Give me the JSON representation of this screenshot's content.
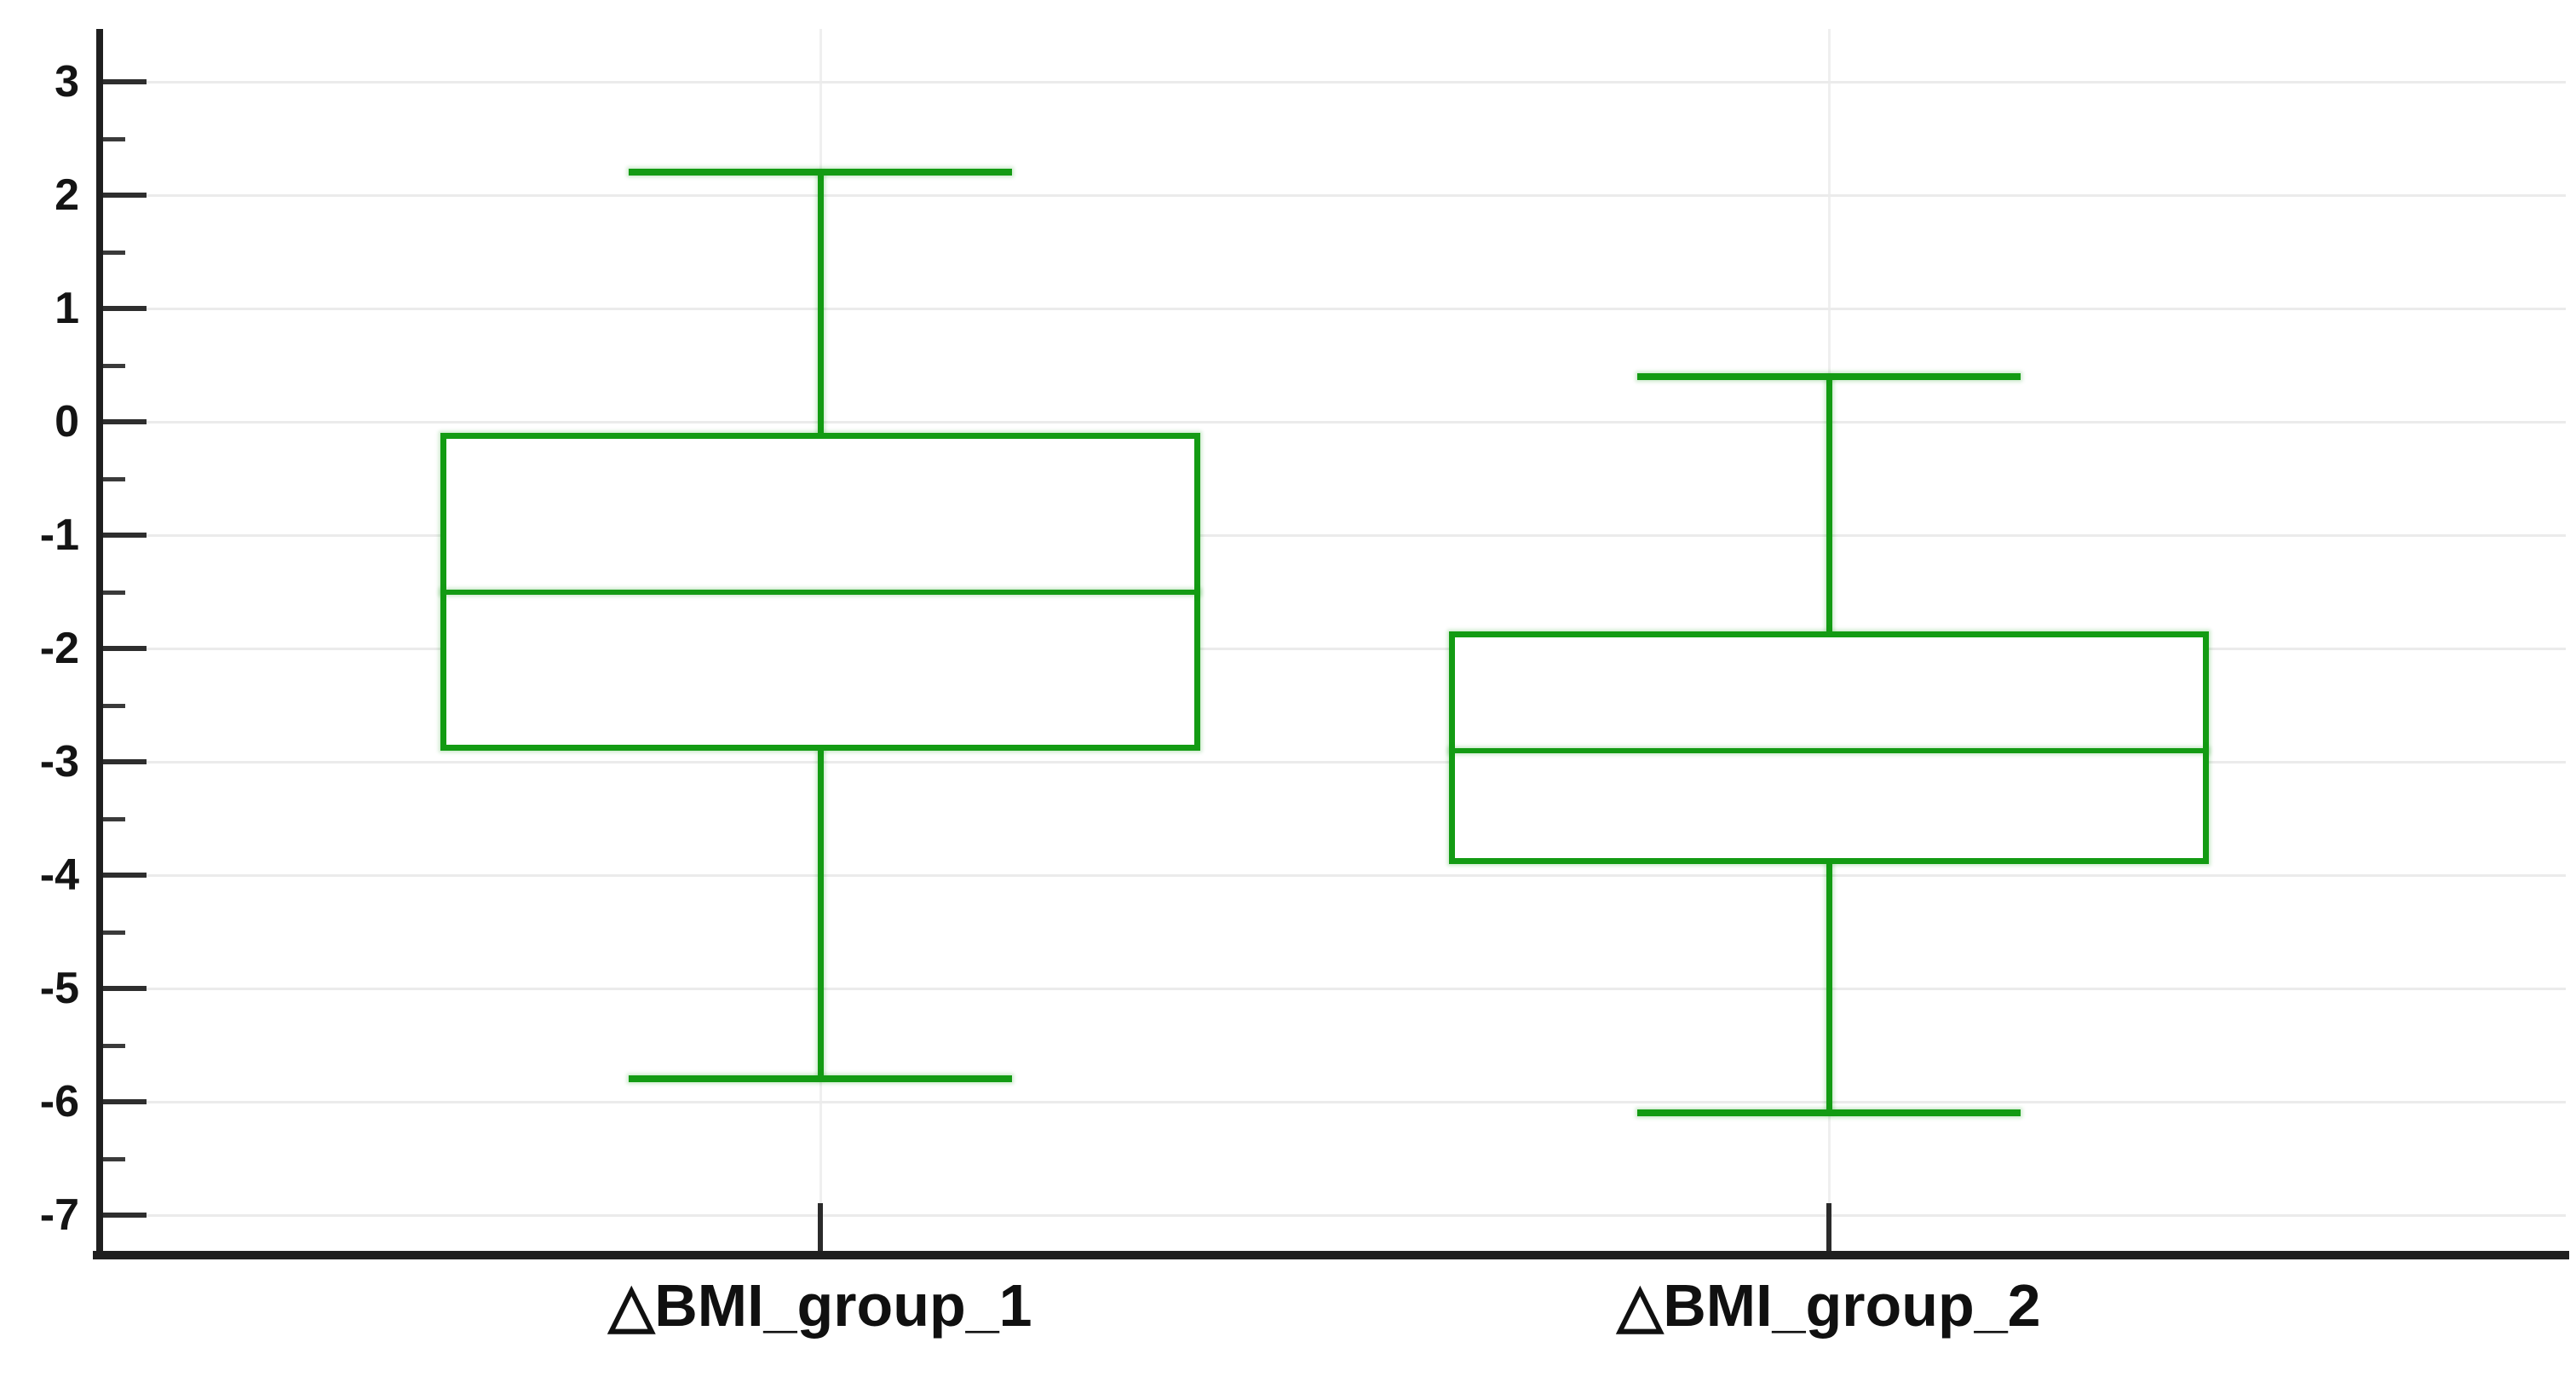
{
  "chart_data": {
    "type": "box",
    "title": "",
    "xlabel": "",
    "ylabel": "",
    "categories": [
      "△BMI_group_1",
      "△BMI_group_2"
    ],
    "series": [
      {
        "name": "△BMI_group_1",
        "min": -5.8,
        "q1": -2.9,
        "median": -1.5,
        "q3": -0.1,
        "max": 2.2
      },
      {
        "name": "△BMI_group_2",
        "min": -6.1,
        "q1": -3.9,
        "median": -2.9,
        "q3": -1.85,
        "max": 0.4
      }
    ],
    "ylim": [
      -7.6,
      3.5
    ],
    "y_major_ticks": [
      3,
      2,
      1,
      0,
      -1,
      -2,
      -3,
      -4,
      -5,
      -6,
      -7
    ],
    "y_minor_tick_step": 0.5,
    "grid": {
      "horizontal_major": true,
      "category_verticals": true,
      "vertical_major": false
    },
    "legend_position": "none",
    "colors": {
      "box": "#139b13",
      "box_halo": "rgba(19,155,19,0.22)",
      "axis": "#1f1f1f",
      "major_gridline": "#ebebeb",
      "category_gridline": "#efefef",
      "tick": "#2e2e2e",
      "label_text": "#141414"
    }
  }
}
